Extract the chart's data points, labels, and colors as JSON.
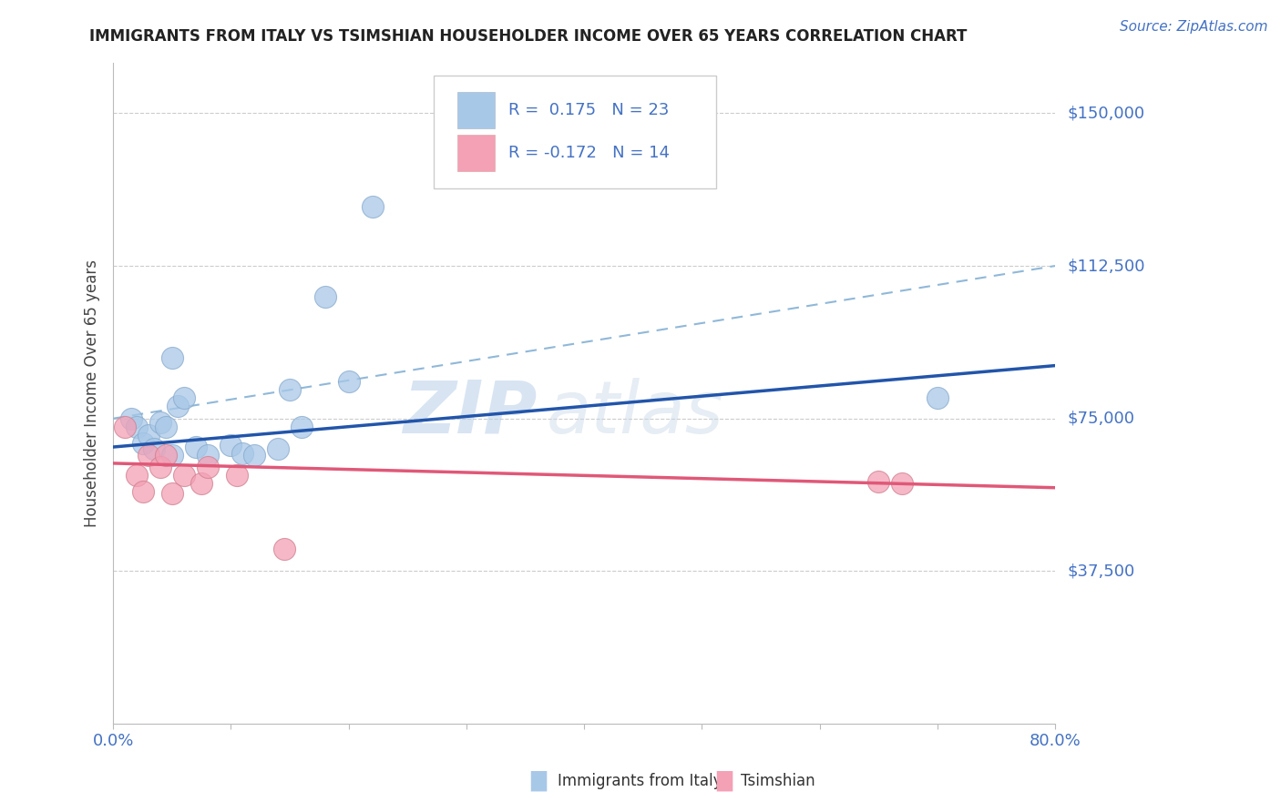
{
  "title": "IMMIGRANTS FROM ITALY VS TSIMSHIAN HOUSEHOLDER INCOME OVER 65 YEARS CORRELATION CHART",
  "source_text": "Source: ZipAtlas.com",
  "ylabel": "Householder Income Over 65 years",
  "legend_label1": "Immigrants from Italy",
  "legend_label2": "Tsimshian",
  "r1": 0.175,
  "n1": 23,
  "r2": -0.172,
  "n2": 14,
  "watermark_zip": "ZIP",
  "watermark_atlas": "atlas",
  "title_color": "#222222",
  "axis_color": "#4472c4",
  "blue_color": "#a8c8e8",
  "pink_color": "#f4a0b5",
  "blue_line_color": "#2255aa",
  "pink_line_color": "#e05878",
  "dashed_line_color": "#90b8d8",
  "grid_color": "#cccccc",
  "source_color": "#4472c4",
  "blue_scatter": [
    [
      1.5,
      75000
    ],
    [
      2.0,
      73000
    ],
    [
      2.5,
      69000
    ],
    [
      3.0,
      71000
    ],
    [
      3.5,
      67500
    ],
    [
      4.0,
      74000
    ],
    [
      4.5,
      73000
    ],
    [
      5.0,
      66000
    ],
    [
      5.5,
      78000
    ],
    [
      6.0,
      80000
    ],
    [
      7.0,
      68000
    ],
    [
      8.0,
      66000
    ],
    [
      10.0,
      68500
    ],
    [
      11.0,
      66500
    ],
    [
      12.0,
      66000
    ],
    [
      14.0,
      67500
    ],
    [
      15.0,
      82000
    ],
    [
      16.0,
      73000
    ],
    [
      20.0,
      84000
    ],
    [
      5.0,
      90000
    ],
    [
      18.0,
      105000
    ],
    [
      22.0,
      127000
    ],
    [
      70.0,
      80000
    ]
  ],
  "pink_scatter": [
    [
      1.0,
      73000
    ],
    [
      2.0,
      61000
    ],
    [
      2.5,
      57000
    ],
    [
      3.0,
      66000
    ],
    [
      4.0,
      63000
    ],
    [
      4.5,
      66000
    ],
    [
      5.0,
      56500
    ],
    [
      6.0,
      61000
    ],
    [
      7.5,
      59000
    ],
    [
      8.0,
      63000
    ],
    [
      10.5,
      61000
    ],
    [
      14.5,
      43000
    ],
    [
      65.0,
      59500
    ],
    [
      67.0,
      59000
    ]
  ],
  "xlim": [
    0,
    80
  ],
  "ylim": [
    0,
    162500
  ],
  "yticks": [
    37500,
    75000,
    112500,
    150000
  ],
  "y_tick_labels": [
    "$37,500",
    "$75,000",
    "$112,500",
    "$150,000"
  ],
  "xticks": [
    0,
    10,
    20,
    30,
    40,
    50,
    60,
    70,
    80
  ],
  "x_tick_show": [
    "0.0%",
    "",
    "",
    "",
    "",
    "",
    "",
    "",
    "80.0%"
  ],
  "blue_trend_x": [
    0,
    80
  ],
  "blue_trend_y": [
    68000,
    88000
  ],
  "dashed_trend_x": [
    0,
    80
  ],
  "dashed_trend_y": [
    75000,
    112500
  ],
  "pink_trend_x": [
    0,
    80
  ],
  "pink_trend_y": [
    64000,
    58000
  ]
}
